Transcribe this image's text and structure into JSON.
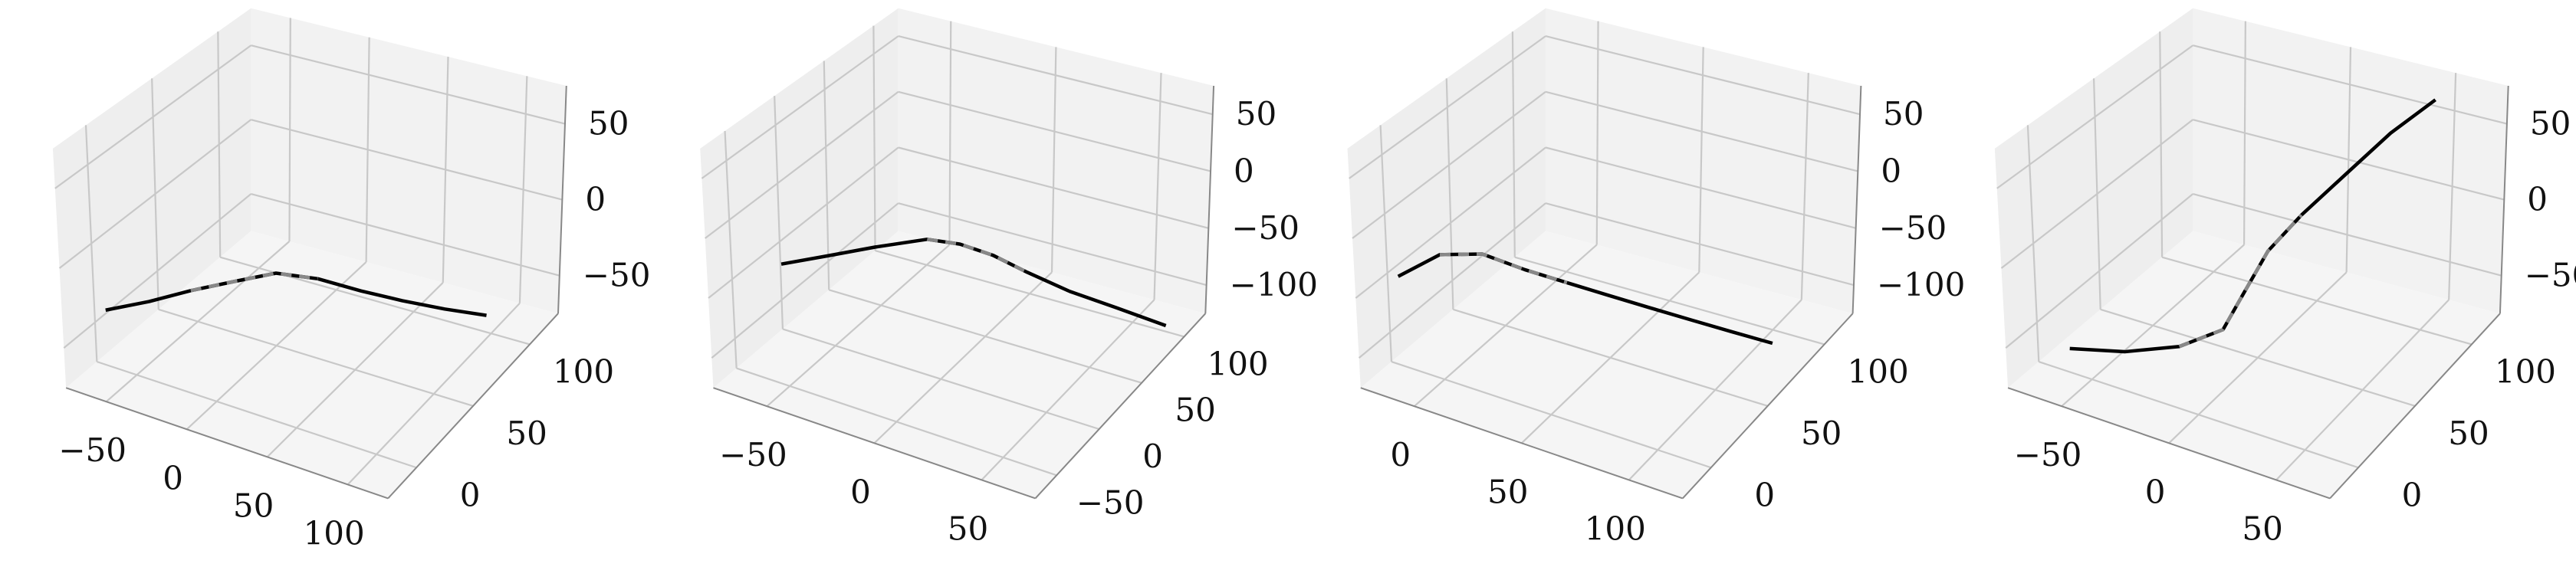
{
  "chart_data": [
    {
      "type": "line",
      "projection": "3d",
      "grid": true,
      "xticks": [
        "−50",
        "0",
        "50",
        "100"
      ],
      "yticks": [
        "0",
        "50",
        "100"
      ],
      "zticks": [
        "−50",
        "0",
        "50"
      ],
      "series": [
        {
          "color": "#000000",
          "x": [
            -68,
            -47,
            -27,
            -6,
            14,
            34,
            55,
            75,
            96,
            116
          ],
          "y": [
            0,
            8,
            16,
            24,
            32,
            40,
            48,
            56,
            64,
            73
          ],
          "z": [
            -40,
            -33,
            -25,
            -18,
            -12,
            -15,
            -22,
            -28,
            -33,
            -38
          ]
        }
      ],
      "highlights": [
        {
          "color": "#888888",
          "point_index": [
            2,
            3,
            4,
            5
          ]
        }
      ]
    },
    {
      "type": "line",
      "projection": "3d",
      "grid": true,
      "xticks": [
        "−50",
        "0",
        "50"
      ],
      "yticks": [
        "−50",
        "0",
        "50",
        "100"
      ],
      "zticks": [
        "−100",
        "−50",
        "0",
        "50"
      ],
      "series": [
        {
          "color": "#000000",
          "x": [
            -70,
            -50,
            -30,
            -8,
            3,
            12,
            22,
            36,
            52,
            70
          ],
          "y": [
            -10,
            -5,
            0,
            5,
            15,
            30,
            45,
            60,
            75,
            90
          ],
          "z": [
            -60,
            -45,
            -30,
            -15,
            -20,
            -35,
            -55,
            -75,
            -92,
            -110
          ]
        }
      ],
      "highlights": [
        {
          "color": "#888888",
          "point_index": [
            3,
            4,
            5,
            6
          ]
        }
      ]
    },
    {
      "type": "line",
      "projection": "3d",
      "grid": true,
      "xticks": [
        "0",
        "50",
        "100"
      ],
      "yticks": [
        "0",
        "50",
        "100"
      ],
      "zticks": [
        "−100",
        "−50",
        "0",
        "50"
      ],
      "series": [
        {
          "color": "#000000",
          "x": [
            -20,
            -5,
            10,
            25,
            40,
            55,
            70,
            85,
            100,
            115
          ],
          "y": [
            0,
            8,
            16,
            24,
            32,
            40,
            48,
            56,
            64,
            72
          ],
          "z": [
            -50,
            -30,
            -28,
            -40,
            -50,
            -60,
            -70,
            -80,
            -90,
            -100
          ]
        }
      ],
      "highlights": [
        {
          "color": "#888888",
          "point_index": [
            1,
            2,
            3,
            4
          ]
        }
      ]
    },
    {
      "type": "line",
      "projection": "3d",
      "grid": true,
      "xticks": [
        "−50",
        "0",
        "50"
      ],
      "yticks": [
        "0",
        "50",
        "100"
      ],
      "zticks": [
        "−50",
        "0",
        "50"
      ],
      "series": [
        {
          "color": "#000000",
          "x": [
            -60,
            -40,
            -20,
            -5,
            0,
            5,
            15,
            30,
            45,
            60
          ],
          "y": [
            0,
            10,
            20,
            30,
            40,
            50,
            60,
            70,
            80,
            90
          ],
          "z": [
            -60,
            -60,
            -55,
            -45,
            -25,
            -5,
            15,
            40,
            65,
            85
          ]
        }
      ],
      "highlights": [
        {
          "color": "#888888",
          "point_index": [
            2,
            3,
            4,
            5,
            6
          ]
        }
      ]
    }
  ]
}
